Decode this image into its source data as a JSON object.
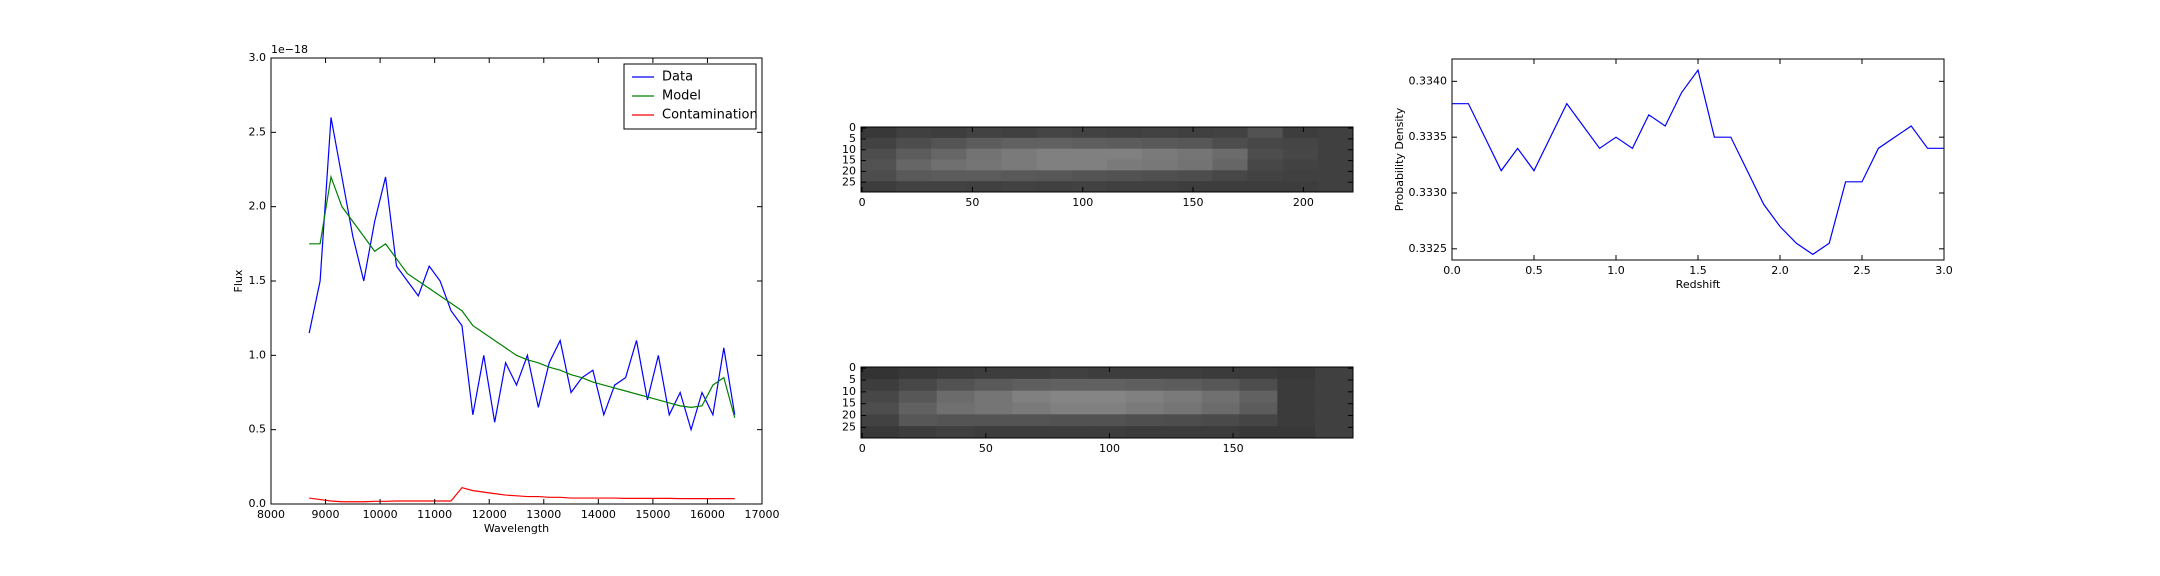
{
  "chart_data": [
    {
      "type": "line",
      "x_label": "Wavelength",
      "y_label": "Flux",
      "offset_text": "1e−18",
      "legend": "upper right",
      "grid": false,
      "xlim": [
        8000,
        17000
      ],
      "xticks": [
        8000,
        9000,
        10000,
        11000,
        12000,
        13000,
        14000,
        15000,
        16000,
        17000
      ],
      "ylim": [
        0,
        3.0
      ],
      "yticks": [
        {
          "value": 0,
          "label": "0.0"
        },
        0.5,
        {
          "value": 1,
          "label": "1.0"
        },
        1.5,
        {
          "value": 2,
          "label": "2.0"
        },
        2.5,
        {
          "value": 3,
          "label": "3.0"
        }
      ],
      "x": [
        8700,
        8900,
        9100,
        9300,
        9500,
        9700,
        9900,
        10100,
        10300,
        10500,
        10700,
        10900,
        11100,
        11300,
        11500,
        11700,
        11900,
        12100,
        12300,
        12500,
        12700,
        12900,
        13100,
        13300,
        13500,
        13700,
        13900,
        14100,
        14300,
        14500,
        14700,
        14900,
        15100,
        15300,
        15500,
        15700,
        15900,
        16100,
        16300,
        16500
      ],
      "series": [
        {
          "name": "Data",
          "color": "#0000ff",
          "values": [
            1.15,
            1.5,
            2.6,
            2.2,
            1.8,
            1.5,
            1.9,
            2.2,
            1.6,
            1.5,
            1.4,
            1.6,
            1.5,
            1.3,
            1.2,
            0.6,
            1.0,
            0.55,
            0.95,
            0.8,
            1.0,
            0.65,
            0.95,
            1.1,
            0.75,
            0.85,
            0.9,
            0.6,
            0.8,
            0.85,
            1.1,
            0.7,
            1.0,
            0.6,
            0.75,
            0.5,
            0.75,
            0.6,
            1.05,
            0.6
          ]
        },
        {
          "name": "Model",
          "color": "#008000",
          "values": [
            1.75,
            1.75,
            2.2,
            2.0,
            1.9,
            1.8,
            1.7,
            1.75,
            1.65,
            1.55,
            1.5,
            1.45,
            1.4,
            1.35,
            1.3,
            1.2,
            1.15,
            1.1,
            1.05,
            1.0,
            0.97,
            0.95,
            0.92,
            0.9,
            0.87,
            0.85,
            0.82,
            0.8,
            0.78,
            0.76,
            0.74,
            0.72,
            0.7,
            0.68,
            0.66,
            0.65,
            0.66,
            0.8,
            0.85,
            0.58
          ]
        },
        {
          "name": "Contamination",
          "color": "#ff0000",
          "values": [
            0.04,
            0.03,
            0.02,
            0.015,
            0.015,
            0.015,
            0.018,
            0.018,
            0.02,
            0.02,
            0.02,
            0.02,
            0.02,
            0.02,
            0.11,
            0.09,
            0.08,
            0.07,
            0.06,
            0.055,
            0.05,
            0.05,
            0.045,
            0.045,
            0.04,
            0.04,
            0.04,
            0.04,
            0.04,
            0.038,
            0.038,
            0.038,
            0.038,
            0.038,
            0.036,
            0.036,
            0.036,
            0.036,
            0.036,
            0.036
          ]
        }
      ]
    },
    {
      "type": "heatmap",
      "xlim": [
        -0.5,
        222.5
      ],
      "xticks": [
        0,
        50,
        100,
        150,
        200
      ],
      "ylim": [
        29.5,
        -0.5
      ],
      "yticks": [
        0,
        5,
        10,
        15,
        20,
        25
      ],
      "values": [
        [
          0.22,
          0.25,
          0.24,
          0.26,
          0.25,
          0.27,
          0.26,
          0.25,
          0.26,
          0.25,
          0.26,
          0.32,
          0.24,
          0.25
        ],
        [
          0.26,
          0.3,
          0.33,
          0.36,
          0.38,
          0.38,
          0.37,
          0.36,
          0.35,
          0.34,
          0.3,
          0.28,
          0.27,
          0.25
        ],
        [
          0.3,
          0.36,
          0.4,
          0.45,
          0.48,
          0.5,
          0.5,
          0.5,
          0.48,
          0.46,
          0.42,
          0.3,
          0.28,
          0.25
        ],
        [
          0.32,
          0.4,
          0.44,
          0.46,
          0.48,
          0.5,
          0.5,
          0.48,
          0.47,
          0.45,
          0.4,
          0.28,
          0.26,
          0.25
        ],
        [
          0.3,
          0.35,
          0.36,
          0.36,
          0.35,
          0.34,
          0.33,
          0.32,
          0.31,
          0.3,
          0.28,
          0.26,
          0.25,
          0.25
        ],
        [
          0.24,
          0.26,
          0.26,
          0.25,
          0.26,
          0.25,
          0.26,
          0.25,
          0.25,
          0.24,
          0.24,
          0.24,
          0.24,
          0.25
        ]
      ]
    },
    {
      "type": "heatmap",
      "xlim": [
        -0.5,
        198.5
      ],
      "xticks": [
        0,
        50,
        100,
        150
      ],
      "ylim": [
        29.5,
        -0.5
      ],
      "yticks": [
        0,
        5,
        10,
        15,
        20,
        25
      ],
      "values": [
        [
          0.2,
          0.22,
          0.23,
          0.24,
          0.24,
          0.25,
          0.24,
          0.24,
          0.24,
          0.23,
          0.23,
          0.22,
          0.25
        ],
        [
          0.24,
          0.28,
          0.32,
          0.35,
          0.37,
          0.38,
          0.38,
          0.37,
          0.36,
          0.34,
          0.3,
          0.23,
          0.25
        ],
        [
          0.28,
          0.34,
          0.42,
          0.46,
          0.5,
          0.52,
          0.52,
          0.5,
          0.48,
          0.44,
          0.38,
          0.23,
          0.25
        ],
        [
          0.3,
          0.38,
          0.44,
          0.46,
          0.48,
          0.5,
          0.5,
          0.48,
          0.46,
          0.42,
          0.36,
          0.23,
          0.25
        ],
        [
          0.26,
          0.34,
          0.33,
          0.33,
          0.33,
          0.32,
          0.32,
          0.31,
          0.3,
          0.29,
          0.27,
          0.23,
          0.25
        ],
        [
          0.22,
          0.24,
          0.25,
          0.24,
          0.24,
          0.24,
          0.24,
          0.23,
          0.23,
          0.23,
          0.22,
          0.22,
          0.25
        ]
      ]
    },
    {
      "type": "line",
      "x_label": "Redshift",
      "y_label": "Probability Density",
      "grid": false,
      "xlim": [
        0,
        3.0
      ],
      "xticks": [
        {
          "value": 0,
          "label": "0.0"
        },
        0.5,
        {
          "value": 1,
          "label": "1.0"
        },
        1.5,
        {
          "value": 2,
          "label": "2.0"
        },
        2.5,
        {
          "value": 3,
          "label": "3.0"
        }
      ],
      "ylim": [
        0.3324,
        0.3342
      ],
      "yticks": [
        0.3325,
        {
          "value": 0.333,
          "label": "0.3330"
        },
        0.3335,
        {
          "value": 0.334,
          "label": "0.3340"
        }
      ],
      "x": [
        0,
        0.1,
        0.2,
        0.3,
        0.4,
        0.5,
        0.6,
        0.7,
        0.8,
        0.9,
        1.0,
        1.1,
        1.2,
        1.3,
        1.4,
        1.5,
        1.6,
        1.7,
        1.8,
        1.9,
        2.0,
        2.1,
        2.2,
        2.3,
        2.4,
        2.5,
        2.6,
        2.7,
        2.8,
        2.9,
        3.0
      ],
      "series": [
        {
          "color": "#0000ff",
          "values": [
            0.3338,
            0.3338,
            0.3335,
            0.3332,
            0.3334,
            0.3332,
            0.3335,
            0.3338,
            0.3336,
            0.3334,
            0.3335,
            0.3334,
            0.3337,
            0.3336,
            0.3339,
            0.3341,
            0.3335,
            0.3335,
            0.3332,
            0.3329,
            0.3327,
            0.33255,
            0.33245,
            0.33255,
            0.3331,
            0.3331,
            0.3334,
            0.3335,
            0.3336,
            0.3334,
            0.3334
          ]
        }
      ]
    }
  ]
}
